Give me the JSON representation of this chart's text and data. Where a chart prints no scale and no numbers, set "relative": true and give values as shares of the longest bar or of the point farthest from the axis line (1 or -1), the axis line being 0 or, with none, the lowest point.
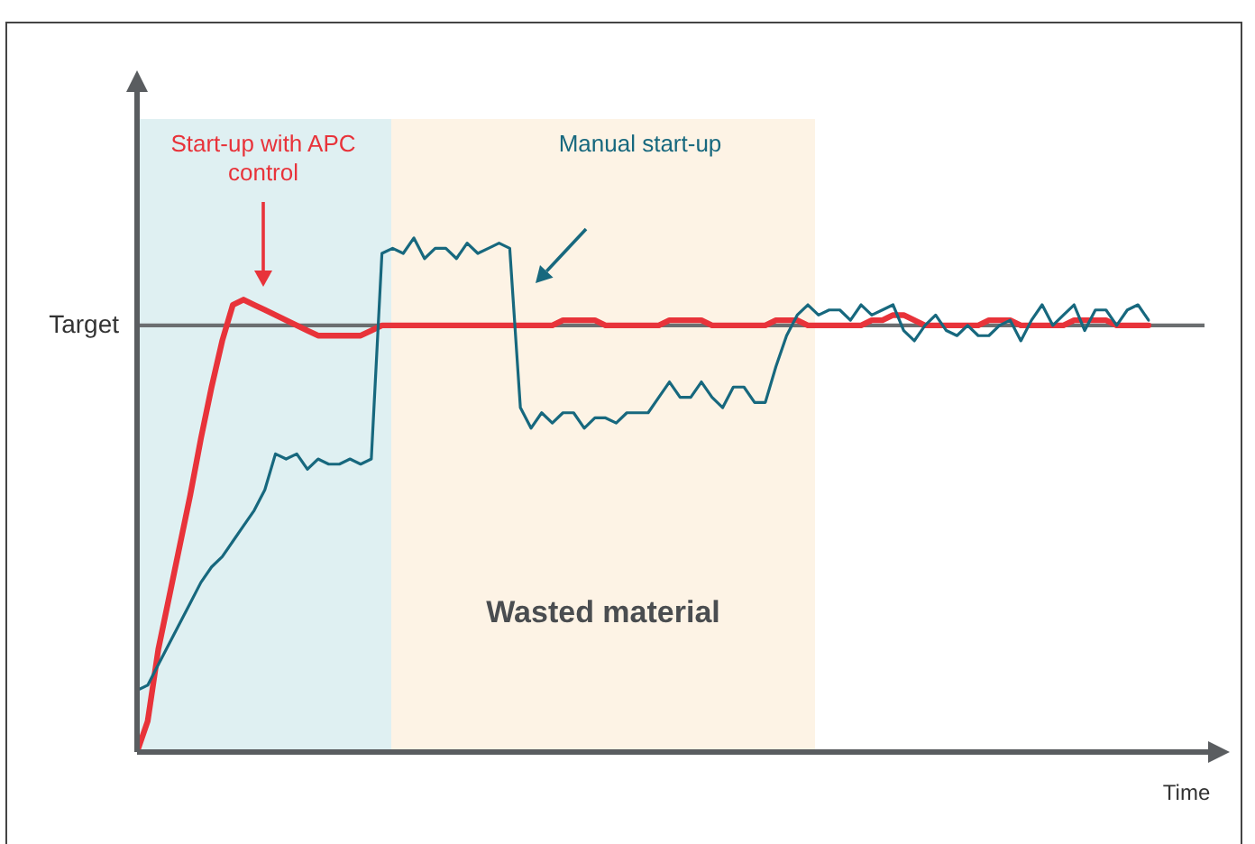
{
  "chart_data": {
    "type": "line",
    "xlabel": "Time",
    "relative": true,
    "tick_labels": false,
    "grid": false,
    "legend": false,
    "marker": "none",
    "line_style": "solid",
    "categories": [
      null,
      null,
      null,
      null,
      null,
      null,
      null,
      null,
      null,
      null,
      null,
      null,
      null,
      null,
      null,
      null,
      null,
      null,
      null,
      null,
      null,
      null,
      null,
      null,
      null,
      null,
      null,
      null,
      null,
      null,
      null,
      null,
      null,
      null,
      null,
      null,
      null,
      null,
      null,
      null,
      null,
      null,
      null,
      null,
      null,
      null,
      null,
      null,
      null,
      null,
      null,
      null,
      null,
      null,
      null,
      null,
      null,
      null,
      null,
      null,
      null,
      null,
      null,
      null,
      null,
      null,
      null,
      null,
      null,
      null,
      null,
      null,
      null,
      null,
      null,
      null,
      null,
      null,
      null,
      null,
      null,
      null,
      null,
      null,
      null,
      null,
      null,
      null,
      null,
      null,
      null,
      null,
      null,
      null,
      null,
      null
    ],
    "series": [
      {
        "name": "Manual start-up",
        "color": "#17687e",
        "values": [
          0.12,
          0.13,
          0.17,
          0.21,
          0.25,
          0.29,
          0.33,
          0.36,
          0.38,
          0.41,
          0.44,
          0.47,
          0.51,
          0.58,
          0.57,
          0.58,
          0.55,
          0.57,
          0.56,
          0.56,
          0.57,
          0.56,
          0.57,
          0.97,
          0.98,
          0.97,
          1,
          0.96,
          0.98,
          0.98,
          0.96,
          0.99,
          0.97,
          0.98,
          0.99,
          0.98,
          0.67,
          0.63,
          0.66,
          0.64,
          0.66,
          0.66,
          0.63,
          0.65,
          0.65,
          0.64,
          0.66,
          0.66,
          0.66,
          0.69,
          0.72,
          0.69,
          0.69,
          0.72,
          0.69,
          0.67,
          0.71,
          0.71,
          0.68,
          0.68,
          0.75,
          0.81,
          0.85,
          0.87,
          0.85,
          0.86,
          0.86,
          0.84,
          0.87,
          0.85,
          0.86,
          0.87,
          0.82,
          0.8,
          0.83,
          0.85,
          0.82,
          0.81,
          0.83,
          0.81,
          0.81,
          0.83,
          0.84,
          0.8,
          0.84,
          0.87,
          0.83,
          0.85,
          0.87,
          0.82,
          0.86,
          0.86,
          0.83,
          0.86,
          0.87,
          0.84
        ]
      },
      {
        "name": "Start-up with APC control",
        "color": "#e8333a",
        "values": [
          0,
          0.06,
          0.2,
          0.3,
          0.4,
          0.5,
          0.61,
          0.71,
          0.8,
          0.87,
          0.88,
          0.87,
          0.86,
          0.85,
          0.84,
          0.83,
          0.82,
          0.81,
          0.81,
          0.81,
          0.81,
          0.81,
          0.82,
          0.83,
          0.83,
          0.83,
          0.83,
          0.83,
          0.83,
          0.83,
          0.83,
          0.83,
          0.83,
          0.83,
          0.83,
          0.83,
          0.83,
          0.83,
          0.83,
          0.83,
          0.84,
          0.84,
          0.84,
          0.84,
          0.83,
          0.83,
          0.83,
          0.83,
          0.83,
          0.83,
          0.84,
          0.84,
          0.84,
          0.84,
          0.83,
          0.83,
          0.83,
          0.83,
          0.83,
          0.83,
          0.84,
          0.84,
          0.84,
          0.83,
          0.83,
          0.83,
          0.83,
          0.83,
          0.83,
          0.84,
          0.84,
          0.85,
          0.85,
          0.84,
          0.83,
          0.83,
          0.83,
          0.83,
          0.83,
          0.83,
          0.84,
          0.84,
          0.84,
          0.83,
          0.83,
          0.83,
          0.83,
          0.83,
          0.84,
          0.84,
          0.84,
          0.84,
          0.83,
          0.83,
          0.83,
          0.83
        ]
      }
    ],
    "ref_lines": [
      {
        "axis": "y",
        "value": 0.83,
        "label": "Target",
        "color": "#6b6e70"
      }
    ],
    "annotations": [
      "Wasted material"
    ]
  }
}
